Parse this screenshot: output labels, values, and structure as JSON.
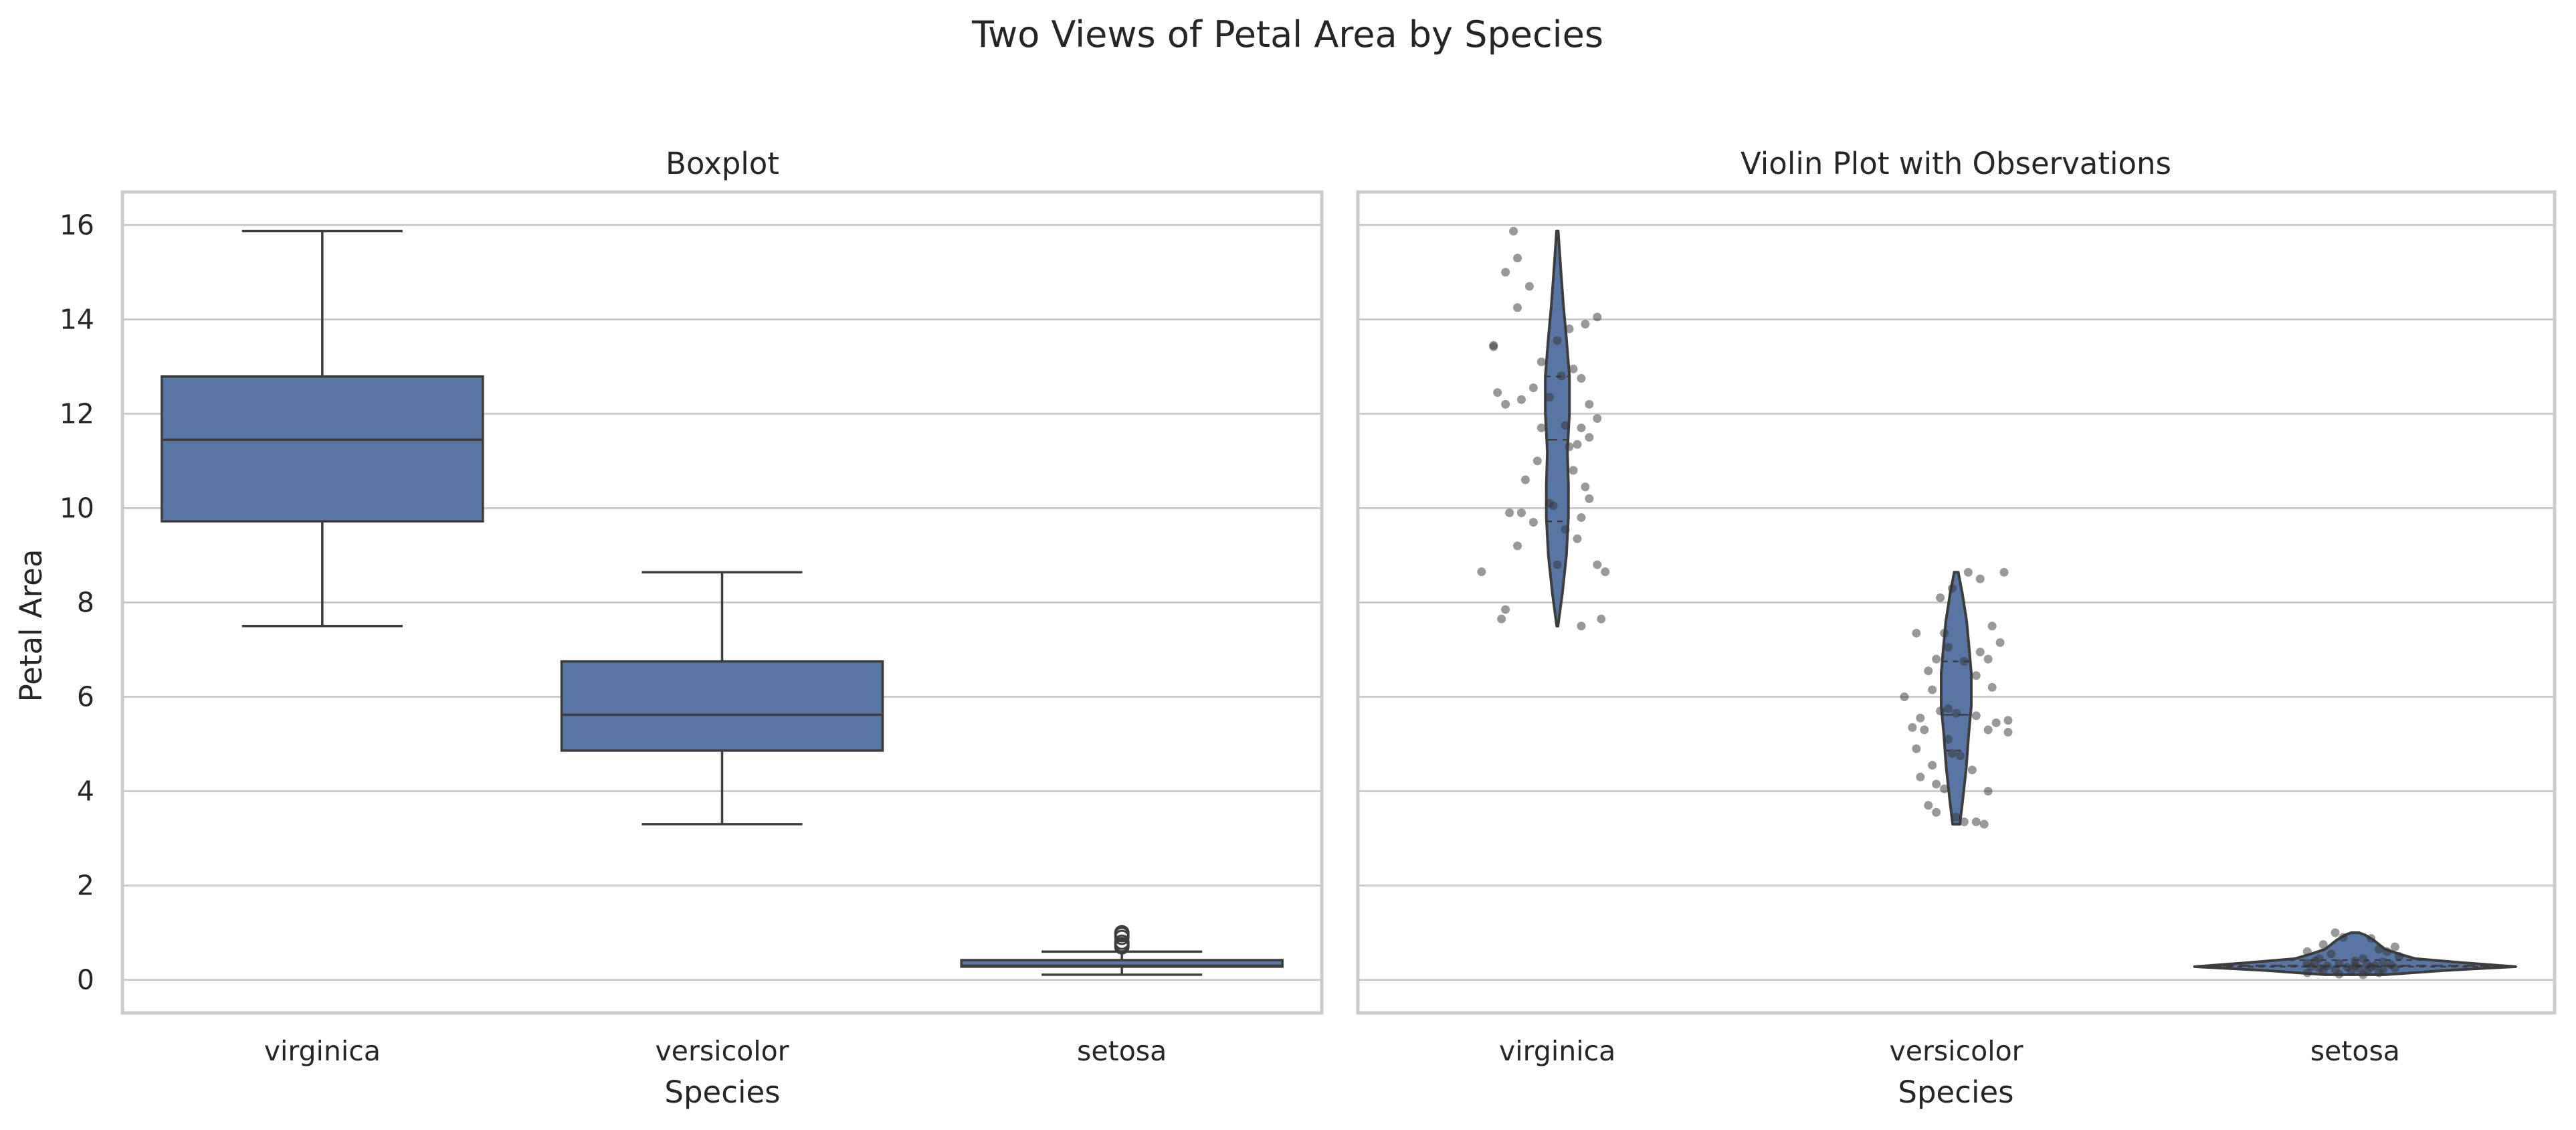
{
  "figure": {
    "title": "Two Views of Petal Area by Species"
  },
  "colors": {
    "fill": "#5875a4",
    "edge": "#3d3d3d",
    "grid": "#cccccc",
    "spine": "#cccccc",
    "jitter": "#333333"
  },
  "chart_data": [
    {
      "type": "box",
      "title": "Boxplot",
      "xlabel": "Species",
      "ylabel": "Petal Area",
      "categories": [
        "virginica",
        "versicolor",
        "setosa"
      ],
      "y_ticks": [
        0,
        2,
        4,
        6,
        8,
        10,
        12,
        14,
        16
      ],
      "ylim": [
        -0.7,
        16.7
      ],
      "grid": "horizontal",
      "boxes": [
        {
          "category": "virginica",
          "whisker_low": 7.5,
          "q1": 9.72,
          "median": 11.45,
          "q3": 12.79,
          "whisker_high": 15.87,
          "outliers": []
        },
        {
          "category": "versicolor",
          "whisker_low": 3.3,
          "q1": 4.86,
          "median": 5.62,
          "q3": 6.75,
          "whisker_high": 8.64,
          "outliers": []
        },
        {
          "category": "setosa",
          "whisker_low": 0.11,
          "q1": 0.28,
          "median": 0.3,
          "q3": 0.42,
          "whisker_high": 0.6,
          "outliers": [
            0.7,
            0.75,
            0.8,
            0.9,
            0.96,
            1.0
          ]
        }
      ]
    },
    {
      "type": "violin",
      "title": "Violin Plot with Observations",
      "xlabel": "Species",
      "ylabel": "",
      "categories": [
        "virginica",
        "versicolor",
        "setosa"
      ],
      "ylim": [
        -0.7,
        16.7
      ],
      "grid": "horizontal",
      "violins": [
        {
          "category": "virginica",
          "min": 7.5,
          "max": 15.87,
          "q1": 9.72,
          "median": 11.45,
          "q3": 12.79,
          "profile": [
            [
              7.5,
              0.003
            ],
            [
              8.2,
              0.025
            ],
            [
              9.0,
              0.045
            ],
            [
              9.8,
              0.055
            ],
            [
              10.5,
              0.055
            ],
            [
              11.2,
              0.05
            ],
            [
              12.0,
              0.06
            ],
            [
              12.8,
              0.06
            ],
            [
              13.6,
              0.045
            ],
            [
              14.3,
              0.03
            ],
            [
              15.0,
              0.018
            ],
            [
              15.87,
              0.004
            ]
          ]
        },
        {
          "category": "versicolor",
          "min": 3.3,
          "max": 8.64,
          "q1": 4.86,
          "median": 5.62,
          "q3": 6.75,
          "profile": [
            [
              3.3,
              0.018
            ],
            [
              3.8,
              0.032
            ],
            [
              4.5,
              0.05
            ],
            [
              5.2,
              0.062
            ],
            [
              5.8,
              0.075
            ],
            [
              6.5,
              0.075
            ],
            [
              7.0,
              0.065
            ],
            [
              7.6,
              0.052
            ],
            [
              8.2,
              0.03
            ],
            [
              8.64,
              0.01
            ]
          ]
        },
        {
          "category": "setosa",
          "min": 0.11,
          "max": 1.0,
          "q1": 0.28,
          "median": 0.3,
          "q3": 0.42,
          "profile": [
            [
              0.11,
              0.15
            ],
            [
              0.2,
              0.45
            ],
            [
              0.28,
              0.8
            ],
            [
              0.36,
              0.55
            ],
            [
              0.45,
              0.3
            ],
            [
              0.55,
              0.22
            ],
            [
              0.65,
              0.15
            ],
            [
              0.75,
              0.12
            ],
            [
              0.85,
              0.09
            ],
            [
              0.95,
              0.05
            ],
            [
              1.0,
              0.02
            ]
          ]
        }
      ],
      "observations": [
        {
          "category": "virginica",
          "points": [
            [
              -0.11,
              15.87
            ],
            [
              -0.1,
              15.3
            ],
            [
              -0.13,
              15.0
            ],
            [
              -0.07,
              14.7
            ],
            [
              -0.1,
              14.25
            ],
            [
              0.03,
              13.8
            ],
            [
              0.07,
              13.9
            ],
            [
              0.1,
              14.05
            ],
            [
              0.0,
              13.55
            ],
            [
              -0.16,
              13.45
            ],
            [
              -0.16,
              13.42
            ],
            [
              -0.04,
              13.1
            ],
            [
              0.04,
              12.95
            ],
            [
              -0.06,
              12.55
            ],
            [
              -0.15,
              12.45
            ],
            [
              -0.09,
              12.3
            ],
            [
              -0.13,
              12.2
            ],
            [
              -0.02,
              12.35
            ],
            [
              0.01,
              12.8
            ],
            [
              0.06,
              12.75
            ],
            [
              0.08,
              12.2
            ],
            [
              0.1,
              11.9
            ],
            [
              0.02,
              11.75
            ],
            [
              -0.04,
              11.7
            ],
            [
              0.06,
              11.7
            ],
            [
              0.08,
              11.5
            ],
            [
              0.03,
              11.3
            ],
            [
              0.05,
              11.35
            ],
            [
              -0.05,
              11.0
            ],
            [
              0.04,
              10.8
            ],
            [
              -0.08,
              10.6
            ],
            [
              0.07,
              10.45
            ],
            [
              -0.02,
              10.1
            ],
            [
              -0.01,
              10.05
            ],
            [
              0.08,
              10.2
            ],
            [
              -0.12,
              9.9
            ],
            [
              -0.09,
              9.9
            ],
            [
              0.06,
              9.8
            ],
            [
              0.02,
              9.55
            ],
            [
              -0.06,
              9.7
            ],
            [
              0.05,
              9.35
            ],
            [
              -0.1,
              9.2
            ],
            [
              0.1,
              8.8
            ],
            [
              0.12,
              8.65
            ],
            [
              -0.19,
              8.65
            ],
            [
              0.0,
              8.8
            ],
            [
              -0.13,
              7.85
            ],
            [
              -0.14,
              7.65
            ],
            [
              0.11,
              7.65
            ],
            [
              0.06,
              7.5
            ]
          ]
        },
        {
          "category": "versicolor",
          "points": [
            [
              0.03,
              8.64
            ],
            [
              0.12,
              8.64
            ],
            [
              0.06,
              8.5
            ],
            [
              -0.01,
              8.3
            ],
            [
              -0.04,
              8.1
            ],
            [
              0.09,
              7.5
            ],
            [
              -0.1,
              7.35
            ],
            [
              -0.03,
              7.35
            ],
            [
              0.11,
              7.15
            ],
            [
              -0.02,
              7.05
            ],
            [
              0.06,
              6.95
            ],
            [
              0.08,
              6.8
            ],
            [
              -0.05,
              6.8
            ],
            [
              0.02,
              6.75
            ],
            [
              -0.07,
              6.55
            ],
            [
              0.05,
              6.45
            ],
            [
              0.09,
              6.2
            ],
            [
              -0.06,
              6.15
            ],
            [
              -0.13,
              6.0
            ],
            [
              -0.02,
              5.75
            ],
            [
              -0.04,
              5.7
            ],
            [
              0.0,
              5.65
            ],
            [
              0.05,
              5.6
            ],
            [
              -0.09,
              5.55
            ],
            [
              0.1,
              5.45
            ],
            [
              0.13,
              5.5
            ],
            [
              -0.11,
              5.35
            ],
            [
              -0.08,
              5.3
            ],
            [
              0.08,
              5.3
            ],
            [
              0.13,
              5.25
            ],
            [
              -0.02,
              5.1
            ],
            [
              -0.1,
              4.9
            ],
            [
              -0.01,
              4.8
            ],
            [
              0.01,
              4.75
            ],
            [
              -0.06,
              4.55
            ],
            [
              0.04,
              4.45
            ],
            [
              -0.09,
              4.3
            ],
            [
              -0.05,
              4.15
            ],
            [
              -0.03,
              4.05
            ],
            [
              0.08,
              4.0
            ],
            [
              -0.07,
              3.7
            ],
            [
              -0.05,
              3.55
            ],
            [
              0.0,
              3.45
            ],
            [
              0.02,
              3.35
            ],
            [
              0.05,
              3.35
            ],
            [
              0.07,
              3.3
            ]
          ]
        },
        {
          "category": "setosa",
          "points": [
            [
              -0.05,
              1.0
            ],
            [
              -0.03,
              0.9
            ],
            [
              0.04,
              0.88
            ],
            [
              -0.08,
              0.75
            ],
            [
              0.1,
              0.7
            ],
            [
              0.06,
              0.65
            ],
            [
              -0.12,
              0.6
            ],
            [
              0.08,
              0.6
            ],
            [
              -0.06,
              0.55
            ],
            [
              0.11,
              0.5
            ],
            [
              -0.09,
              0.45
            ],
            [
              0.02,
              0.45
            ],
            [
              -0.1,
              0.4
            ],
            [
              0.0,
              0.4
            ],
            [
              0.07,
              0.38
            ],
            [
              -0.12,
              0.35
            ],
            [
              -0.04,
              0.35
            ],
            [
              0.03,
              0.33
            ],
            [
              0.09,
              0.32
            ],
            [
              -0.07,
              0.3
            ],
            [
              0.0,
              0.3
            ],
            [
              0.05,
              0.3
            ],
            [
              -0.11,
              0.28
            ],
            [
              -0.02,
              0.27
            ],
            [
              0.04,
              0.27
            ],
            [
              -0.09,
              0.25
            ],
            [
              0.1,
              0.25
            ],
            [
              0.01,
              0.24
            ],
            [
              -0.05,
              0.22
            ],
            [
              0.07,
              0.22
            ],
            [
              -0.08,
              0.2
            ],
            [
              -0.01,
              0.19
            ],
            [
              0.03,
              0.18
            ],
            [
              -0.12,
              0.15
            ],
            [
              0.06,
              0.15
            ],
            [
              -0.04,
              0.12
            ],
            [
              0.02,
              0.11
            ]
          ]
        }
      ]
    }
  ]
}
